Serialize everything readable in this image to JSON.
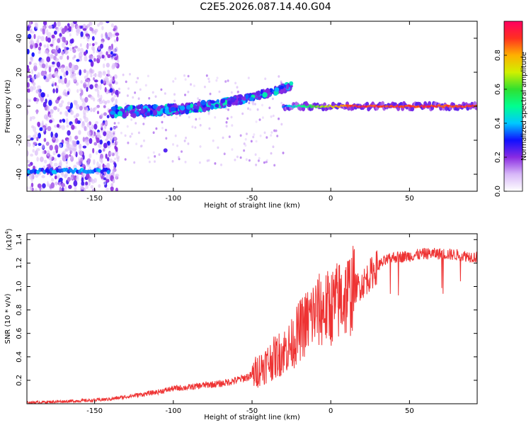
{
  "title": "C2E5.2026.087.14.40.G04",
  "chart_data": [
    {
      "type": "scatter",
      "name": "spectrogram",
      "xlabel": "Height of straight line (km)",
      "ylabel": "Frequency (Hz)",
      "xlim": [
        -193,
        93
      ],
      "ylim": [
        -50,
        50
      ],
      "xticks": [
        -150,
        -100,
        -50,
        0,
        50
      ],
      "xtick_labels": [
        "-150",
        "-100",
        "-50",
        "0",
        "50"
      ],
      "yticks": [
        -40,
        -20,
        0,
        20,
        40
      ],
      "ytick_labels": [
        "-40",
        "-20",
        "0",
        "20",
        "40"
      ],
      "colorbar": {
        "label": "Normalized spectral amplitude",
        "range": [
          0,
          1
        ],
        "ticks": [
          0.0,
          0.2,
          0.4,
          0.6,
          0.8
        ],
        "tick_labels": [
          "0.0",
          "0.2",
          "0.4",
          "0.6",
          "0.8"
        ]
      },
      "features": [
        {
          "x": [
            -193,
            -140
          ],
          "y": -38,
          "amplitude": 0.35
        },
        {
          "x": [
            -140,
            -25
          ],
          "y_start": -3,
          "y_end": 12,
          "amplitude": 0.3
        },
        {
          "x": [
            -30,
            93
          ],
          "y": 0,
          "amplitude": 0.9
        }
      ],
      "grid": false
    },
    {
      "type": "line",
      "name": "snr",
      "xlabel": "Height of straight line (km)",
      "ylabel": "SNR (10 * v/v)",
      "scale_label": "(x10",
      "scale_exp": "4",
      "scale_close": ")",
      "xlim": [
        -193,
        93
      ],
      "ylim": [
        0,
        1.45
      ],
      "xticks": [
        -150,
        -100,
        -50,
        0,
        50
      ],
      "xtick_labels": [
        "-150",
        "-100",
        "-50",
        "0",
        "50"
      ],
      "yticks": [
        0.2,
        0.4,
        0.6,
        0.8,
        1.0,
        1.2,
        1.4
      ],
      "ytick_labels": [
        "0.2",
        "0.4",
        "0.6",
        "0.8",
        "1.0",
        "1.2",
        "1.4"
      ],
      "color": "#ee3333",
      "x": [
        -193,
        -170,
        -150,
        -140,
        -130,
        -120,
        -110,
        -100,
        -90,
        -80,
        -70,
        -60,
        -50,
        -45,
        -40,
        -35,
        -30,
        -25,
        -20,
        -15,
        -10,
        -5,
        0,
        5,
        10,
        15,
        20,
        25,
        30,
        35,
        40,
        50,
        60,
        70,
        80,
        93
      ],
      "y": [
        0.01,
        0.02,
        0.03,
        0.04,
        0.06,
        0.08,
        0.1,
        0.13,
        0.14,
        0.16,
        0.17,
        0.2,
        0.24,
        0.3,
        0.35,
        0.4,
        0.45,
        0.5,
        0.62,
        0.7,
        0.78,
        0.8,
        0.82,
        0.88,
        0.92,
        0.98,
        1.02,
        1.1,
        1.18,
        1.22,
        1.25,
        1.26,
        1.28,
        1.28,
        1.27,
        1.25
      ],
      "grid": false
    }
  ]
}
